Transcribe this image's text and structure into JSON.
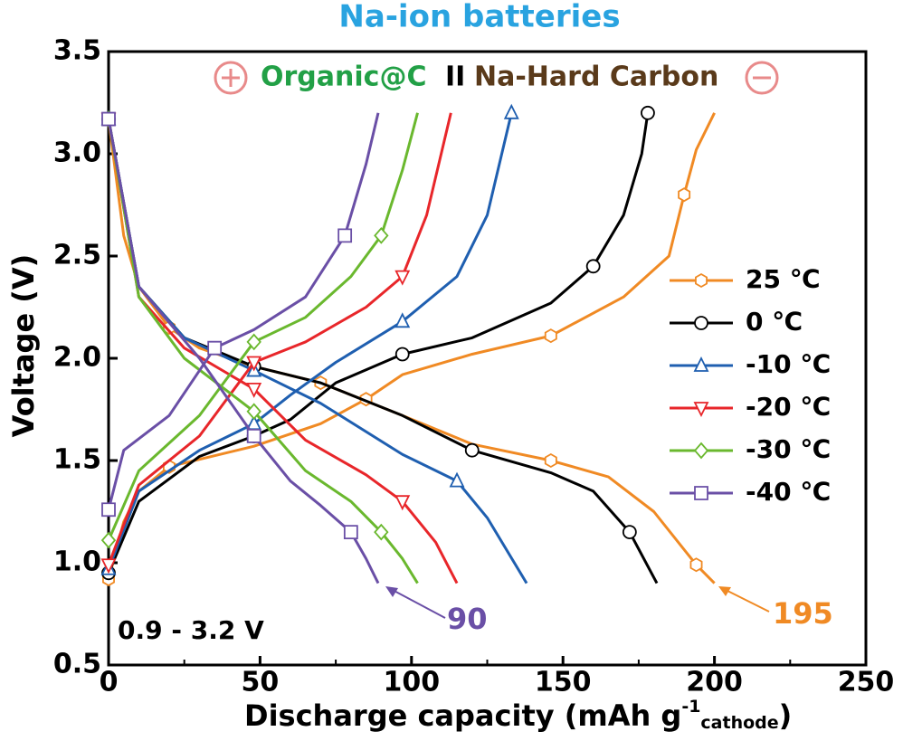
{
  "chart_data": {
    "type": "line",
    "title": "Na-ion batteries",
    "subtitle": [
      "Organic@C",
      "II",
      "Na-Hard Carbon"
    ],
    "xlabel": [
      "Discharge capacity (mAh g",
      "-1",
      "cathode",
      ")"
    ],
    "ylabel": "Voltage (V)",
    "xlim": [
      0,
      250
    ],
    "ylim": [
      0.5,
      3.5
    ],
    "xticks": [
      0,
      50,
      100,
      150,
      200,
      250
    ],
    "yticks": [
      0.5,
      {
        "value": 1.0,
        "label": "1.0"
      },
      1.5,
      {
        "value": 2.0,
        "label": "2.0"
      },
      2.5,
      {
        "value": 3.0,
        "label": "3.0"
      },
      3.5
    ],
    "legend": "right",
    "annotations": [
      {
        "text": "0.9 - 3.2 V",
        "color": "#000000"
      },
      {
        "text": "90",
        "color": "#6a4fa6"
      },
      {
        "text": "195",
        "color": "#f08a24"
      }
    ],
    "series": [
      {
        "name": "25 ℃",
        "color": "#f08a24",
        "marker": "hexagon",
        "x": [
          0,
          5,
          10,
          20,
          30,
          48,
          70,
          97,
          120,
          146,
          165,
          180,
          194,
          200,
          null,
          0,
          5,
          10,
          20,
          48,
          70,
          85,
          97,
          120,
          146,
          170,
          185,
          190,
          194,
          200
        ],
        "values": [
          3.17,
          2.6,
          2.35,
          2.15,
          2.05,
          1.96,
          1.88,
          1.72,
          1.58,
          1.5,
          1.42,
          1.25,
          0.99,
          0.9,
          null,
          0.92,
          1.2,
          1.35,
          1.47,
          1.57,
          1.68,
          1.8,
          1.92,
          2.02,
          2.11,
          2.3,
          2.5,
          2.8,
          3.02,
          3.2
        ]
      },
      {
        "name": "0 ℃",
        "color": "#000000",
        "marker": "circle",
        "x": [
          0,
          10,
          25,
          48,
          70,
          97,
          120,
          146,
          160,
          172,
          181,
          null,
          0,
          10,
          30,
          48,
          60,
          75,
          97,
          120,
          146,
          160,
          170,
          176,
          178
        ],
        "values": [
          3.17,
          2.35,
          2.1,
          1.96,
          1.88,
          1.72,
          1.55,
          1.44,
          1.35,
          1.15,
          0.9,
          null,
          0.95,
          1.3,
          1.52,
          1.62,
          1.7,
          1.88,
          2.02,
          2.1,
          2.27,
          2.45,
          2.7,
          3.0,
          3.2
        ]
      },
      {
        "name": "-10 ℃",
        "color": "#1f5fb0",
        "marker": "triangle-up",
        "x": [
          0,
          10,
          25,
          48,
          70,
          97,
          115,
          125,
          138,
          null,
          0,
          10,
          30,
          48,
          60,
          75,
          97,
          115,
          125,
          133
        ],
        "values": [
          3.17,
          2.35,
          2.1,
          1.94,
          1.78,
          1.53,
          1.4,
          1.22,
          0.9,
          null,
          0.97,
          1.35,
          1.55,
          1.68,
          1.82,
          1.98,
          2.18,
          2.4,
          2.7,
          3.2
        ]
      },
      {
        "name": "-20 ℃",
        "color": "#e8262a",
        "marker": "triangle-down",
        "x": [
          0,
          10,
          25,
          48,
          65,
          85,
          97,
          108,
          115,
          null,
          0,
          10,
          30,
          48,
          65,
          85,
          97,
          105,
          113
        ],
        "values": [
          3.17,
          2.3,
          2.05,
          1.85,
          1.6,
          1.43,
          1.3,
          1.1,
          0.9,
          null,
          0.99,
          1.38,
          1.62,
          1.98,
          2.08,
          2.25,
          2.4,
          2.7,
          3.2
        ]
      },
      {
        "name": "-30 ℃",
        "color": "#6ab82e",
        "marker": "diamond",
        "x": [
          0,
          10,
          25,
          48,
          65,
          80,
          90,
          97,
          102,
          null,
          0,
          10,
          30,
          48,
          65,
          80,
          90,
          97,
          102
        ],
        "values": [
          3.17,
          2.3,
          2.0,
          1.74,
          1.45,
          1.3,
          1.15,
          1.02,
          0.9,
          null,
          1.11,
          1.45,
          1.72,
          2.08,
          2.2,
          2.4,
          2.6,
          2.92,
          3.2
        ]
      },
      {
        "name": "-40 ℃",
        "color": "#6a4fa6",
        "marker": "square",
        "x": [
          0,
          10,
          30,
          48,
          60,
          70,
          80,
          85,
          89,
          null,
          0,
          5,
          20,
          35,
          48,
          65,
          78,
          85,
          89
        ],
        "values": [
          3.17,
          2.35,
          2.0,
          1.62,
          1.4,
          1.28,
          1.15,
          1.02,
          0.9,
          null,
          1.26,
          1.55,
          1.72,
          2.05,
          2.14,
          2.3,
          2.6,
          2.95,
          3.2
        ]
      }
    ]
  }
}
